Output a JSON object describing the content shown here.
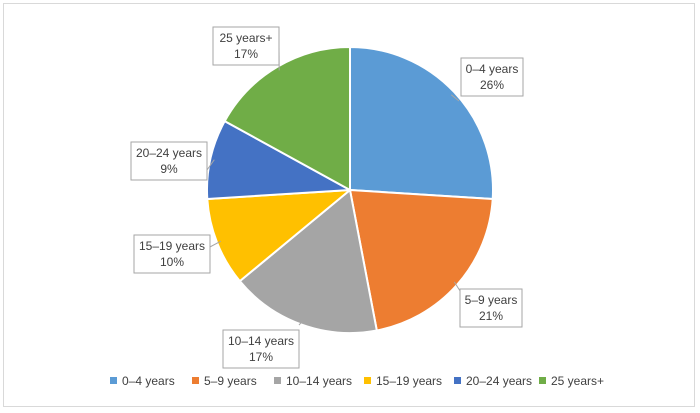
{
  "chart_data": {
    "type": "pie",
    "title": "",
    "categories": [
      "0–4 years",
      "5–9 years",
      "10–14 years",
      "15–19 years",
      "20–24 years",
      "25 years+"
    ],
    "values": [
      26,
      21,
      17,
      10,
      9,
      17
    ],
    "labels": [
      "26%",
      "21%",
      "17%",
      "10%",
      "9%",
      "17%"
    ],
    "colors": [
      "#5B9BD5",
      "#ED7D31",
      "#A5A5A5",
      "#FFC000",
      "#4472C4",
      "#70AD47"
    ],
    "start_angle_deg": 0,
    "direction": "clockwise",
    "legend_position": "bottom",
    "data_labels": "callouts with category name and percent"
  }
}
